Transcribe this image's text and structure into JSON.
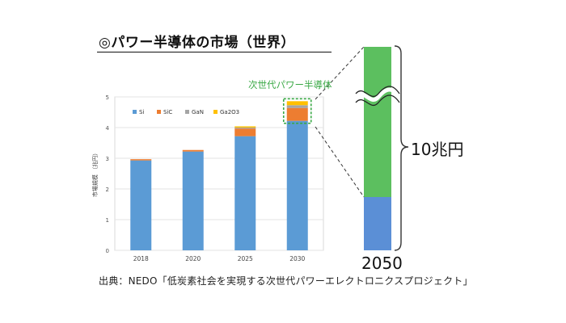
{
  "heading": "◎パワー半導体の市場（世界）",
  "next_gen_label": "次世代パワー半導体",
  "amount_label": "10兆円",
  "year_label": "2050",
  "caption": "出典：NEDO「低炭素社会を実現する次世代パワーエレクトロニクスプロジェクト」",
  "colors": {
    "Si": "#5b9bd5",
    "SiC": "#ed7d31",
    "GaN": "#a5a5a5",
    "Ga2O3": "#ffc000",
    "next_gen": "#5cbf5f",
    "projection_si": "#5b8fd6"
  },
  "chart_data": {
    "type": "bar",
    "stacked": true,
    "categories": [
      "2018",
      "2020",
      "2025",
      "2030"
    ],
    "series": [
      {
        "name": "Si",
        "values": [
          2.93,
          3.22,
          3.72,
          4.22
        ]
      },
      {
        "name": "SiC",
        "values": [
          0.04,
          0.05,
          0.25,
          0.42
        ]
      },
      {
        "name": "GaN",
        "values": [
          0.0,
          0.0,
          0.03,
          0.09
        ]
      },
      {
        "name": "Ga2O3",
        "values": [
          0.0,
          0.0,
          0.04,
          0.13
        ]
      }
    ],
    "xlabel": "",
    "ylabel": "市場規模 （兆円）",
    "ylim": [
      0,
      5
    ],
    "yticks": [
      0,
      1,
      2,
      3,
      4,
      5
    ],
    "grid": true,
    "legend": "top-left"
  }
}
